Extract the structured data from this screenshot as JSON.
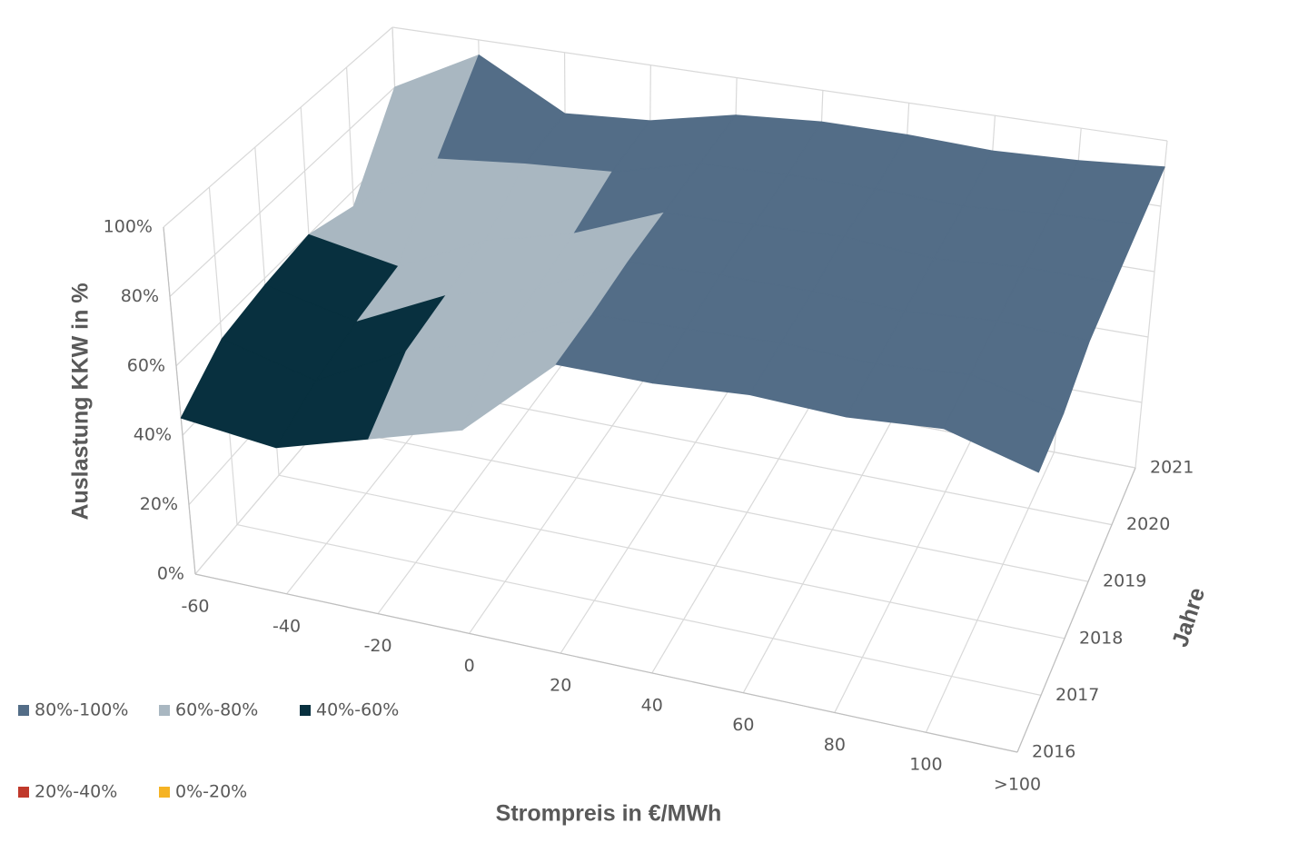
{
  "chart_data": {
    "type": "surface3d",
    "xlabel": "Strompreis in €/MWh",
    "zlabel": "Auslastung KKW in %",
    "ylabel": "Jahre",
    "categories": [
      "-60",
      "-40",
      "-20",
      "0",
      "20",
      "40",
      "60",
      "80",
      "100",
      ">100"
    ],
    "series": [
      {
        "name": "2016",
        "values": [
          45,
          42,
          50,
          58,
          82,
          82,
          84,
          83,
          85,
          78
        ]
      },
      {
        "name": "2017",
        "values": [
          55,
          48,
          62,
          70,
          83,
          84,
          85,
          84,
          86,
          80
        ]
      },
      {
        "name": "2018",
        "values": [
          58,
          52,
          65,
          72,
          85,
          86,
          86,
          85,
          87,
          86
        ]
      },
      {
        "name": "2019",
        "values": [
          60,
          55,
          68,
          75,
          86,
          87,
          88,
          86,
          88,
          88
        ]
      },
      {
        "name": "2020",
        "values": [
          55,
          75,
          78,
          80,
          87,
          88,
          88,
          87,
          89,
          90
        ]
      },
      {
        "name": "2021",
        "values": [
          80,
          95,
          80,
          82,
          88,
          90,
          90,
          89,
          90,
          92
        ]
      }
    ],
    "zlim": [
      0,
      100
    ],
    "zticks": [
      {
        "value": 0,
        "label": "0%"
      },
      {
        "value": 20,
        "label": "20%"
      },
      {
        "value": 40,
        "label": "40%"
      },
      {
        "value": 60,
        "label": "60%"
      },
      {
        "value": 80,
        "label": "80%"
      },
      {
        "value": 100,
        "label": "100%"
      }
    ],
    "bands": [
      {
        "name": "80%-100%",
        "color": "#536d87",
        "range": [
          80,
          100
        ]
      },
      {
        "name": "60%-80%",
        "color": "#a9b7c1",
        "range": [
          60,
          80
        ]
      },
      {
        "name": "40%-60%",
        "color": "#08303f",
        "range": [
          40,
          60
        ]
      },
      {
        "name": "20%-40%",
        "color": "#c0392b",
        "range": [
          20,
          40
        ]
      },
      {
        "name": "0%-20%",
        "color": "#f5b324",
        "range": [
          0,
          20
        ]
      }
    ]
  }
}
